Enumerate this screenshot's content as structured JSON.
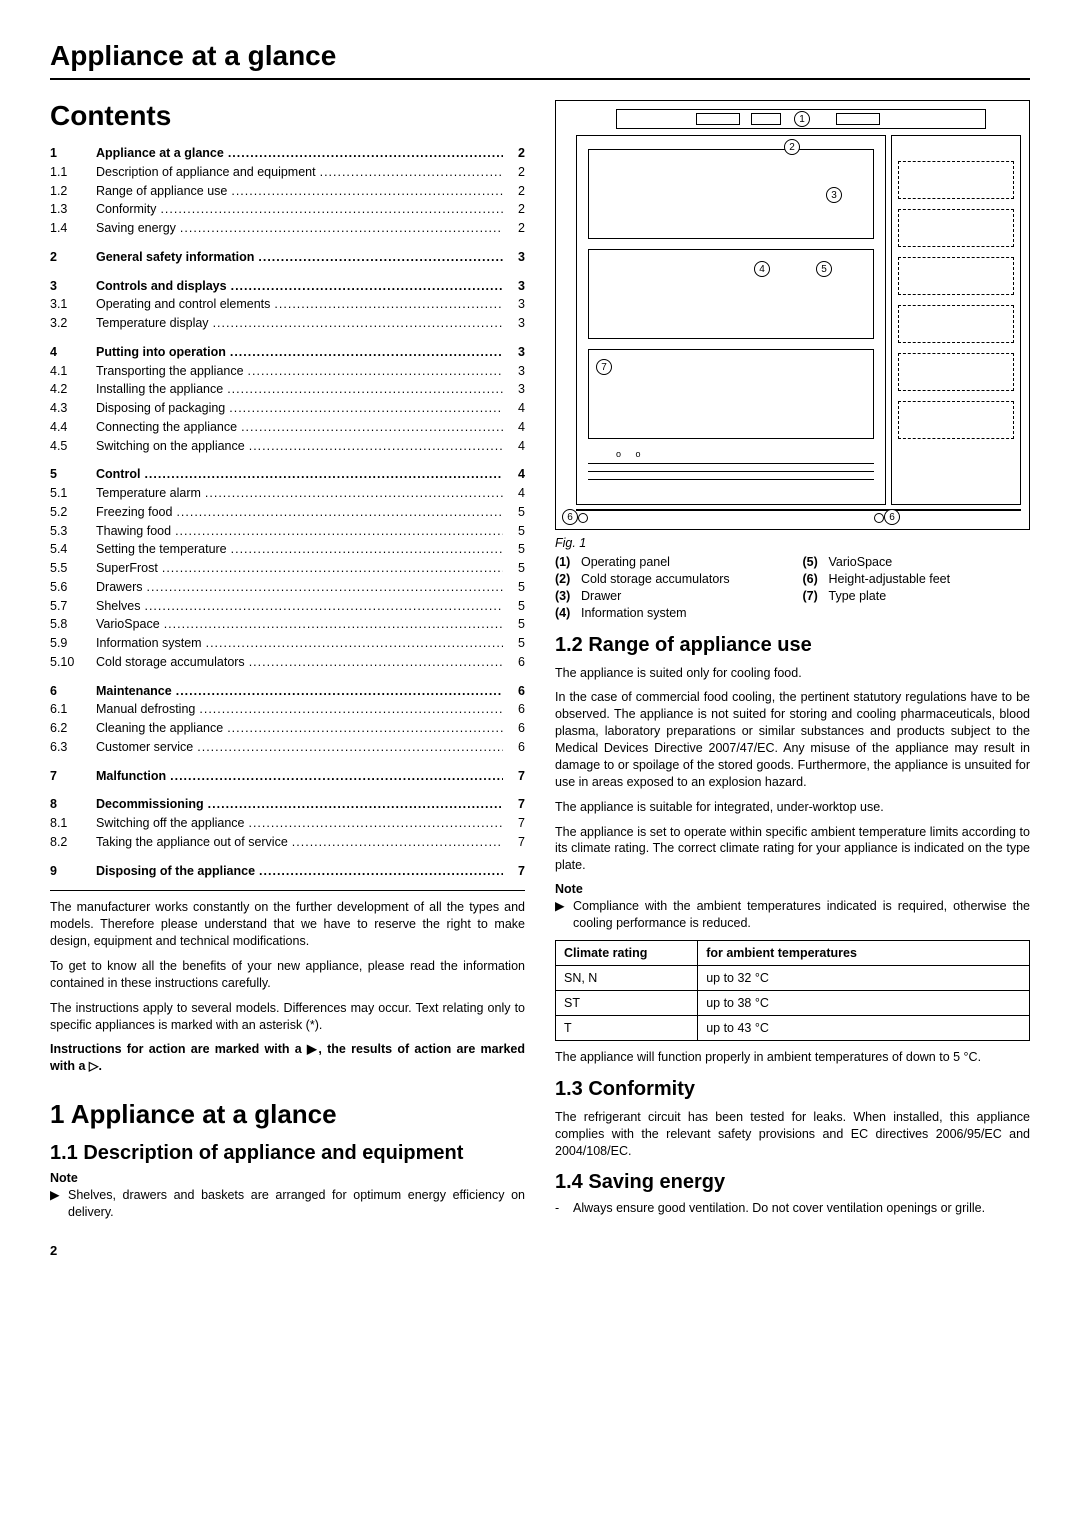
{
  "running_header": "Appliance at a glance",
  "contents_title": "Contents",
  "toc": [
    [
      {
        "n": "1",
        "t": "Appliance at a glance",
        "p": "2",
        "b": true
      },
      {
        "n": "1.1",
        "t": "Description of appliance and equipment",
        "p": "2",
        "b": false
      },
      {
        "n": "1.2",
        "t": "Range of appliance use",
        "p": "2",
        "b": false
      },
      {
        "n": "1.3",
        "t": "Conformity",
        "p": "2",
        "b": false
      },
      {
        "n": "1.4",
        "t": "Saving energy",
        "p": "2",
        "b": false
      }
    ],
    [
      {
        "n": "2",
        "t": "General safety information",
        "p": "3",
        "b": true
      }
    ],
    [
      {
        "n": "3",
        "t": "Controls and displays",
        "p": "3",
        "b": true
      },
      {
        "n": "3.1",
        "t": "Operating and control elements",
        "p": "3",
        "b": false
      },
      {
        "n": "3.2",
        "t": "Temperature display",
        "p": "3",
        "b": false
      }
    ],
    [
      {
        "n": "4",
        "t": "Putting into operation",
        "p": "3",
        "b": true
      },
      {
        "n": "4.1",
        "t": "Transporting the appliance",
        "p": "3",
        "b": false
      },
      {
        "n": "4.2",
        "t": "Installing the appliance",
        "p": "3",
        "b": false
      },
      {
        "n": "4.3",
        "t": "Disposing of packaging",
        "p": "4",
        "b": false
      },
      {
        "n": "4.4",
        "t": "Connecting the appliance",
        "p": "4",
        "b": false
      },
      {
        "n": "4.5",
        "t": "Switching on the appliance",
        "p": "4",
        "b": false
      }
    ],
    [
      {
        "n": "5",
        "t": "Control",
        "p": "4",
        "b": true
      },
      {
        "n": "5.1",
        "t": "Temperature alarm",
        "p": "4",
        "b": false
      },
      {
        "n": "5.2",
        "t": "Freezing food",
        "p": "5",
        "b": false
      },
      {
        "n": "5.3",
        "t": "Thawing food",
        "p": "5",
        "b": false
      },
      {
        "n": "5.4",
        "t": "Setting the temperature",
        "p": "5",
        "b": false
      },
      {
        "n": "5.5",
        "t": "SuperFrost",
        "p": "5",
        "b": false
      },
      {
        "n": "5.6",
        "t": "Drawers",
        "p": "5",
        "b": false
      },
      {
        "n": "5.7",
        "t": "Shelves",
        "p": "5",
        "b": false
      },
      {
        "n": "5.8",
        "t": "VarioSpace",
        "p": "5",
        "b": false
      },
      {
        "n": "5.9",
        "t": "Information system",
        "p": "5",
        "b": false
      },
      {
        "n": "5.10",
        "t": "Cold storage accumulators",
        "p": "6",
        "b": false
      }
    ],
    [
      {
        "n": "6",
        "t": "Maintenance",
        "p": "6",
        "b": true
      },
      {
        "n": "6.1",
        "t": "Manual defrosting",
        "p": "6",
        "b": false
      },
      {
        "n": "6.2",
        "t": "Cleaning the appliance",
        "p": "6",
        "b": false
      },
      {
        "n": "6.3",
        "t": "Customer service",
        "p": "6",
        "b": false
      }
    ],
    [
      {
        "n": "7",
        "t": "Malfunction",
        "p": "7",
        "b": true
      }
    ],
    [
      {
        "n": "8",
        "t": "Decommissioning",
        "p": "7",
        "b": true
      },
      {
        "n": "8.1",
        "t": "Switching off the appliance",
        "p": "7",
        "b": false
      },
      {
        "n": "8.2",
        "t": "Taking the appliance out of service",
        "p": "7",
        "b": false
      }
    ],
    [
      {
        "n": "9",
        "t": "Disposing of the appliance",
        "p": "7",
        "b": true
      }
    ]
  ],
  "para_manufacturer": "The manufacturer works constantly on the further development of all the types and models. Therefore please understand that we have to reserve the right to make design, equipment and technical modifications.",
  "para_benefits": "To get to know all the benefits of your new appliance, please read the information contained in these instructions carefully.",
  "para_models": "The instructions apply to several models. Differences may occur. Text relating only to specific appliances is marked with an asterisk (*).",
  "para_actions": "Instructions for action are marked with a ▶, the results of action are marked with a ▷.",
  "h1_1": "1 Appliance at a glance",
  "h2_11": "1.1 Description of appliance and equipment",
  "note_label": "Note",
  "note_11": "Shelves, drawers and baskets are arranged for optimum energy efficiency on delivery.",
  "fig_caption": "Fig. 1",
  "legend_left": [
    {
      "n": "(1)",
      "t": "Operating panel"
    },
    {
      "n": "(2)",
      "t": "Cold storage accumulators"
    },
    {
      "n": "(3)",
      "t": "Drawer"
    },
    {
      "n": "(4)",
      "t": "Information system"
    }
  ],
  "legend_right": [
    {
      "n": "(5)",
      "t": "VarioSpace"
    },
    {
      "n": "(6)",
      "t": "Height-adjustable feet"
    },
    {
      "n": "(7)",
      "t": "Type plate"
    }
  ],
  "h2_12": "1.2 Range of appliance use",
  "para_12a": "The appliance is suited only for cooling food.",
  "para_12b": "In the case of commercial food cooling, the pertinent statutory regulations have to be observed. The appliance is not suited for storing and cooling pharmaceuticals, blood plasma, laboratory preparations or similar substances and products subject to the Medical Devices Directive 2007/47/EC. Any misuse of the appliance may result in damage to or spoilage of the stored goods. Furthermore, the appliance is unsuited for use in areas exposed to an explosion hazard.",
  "para_12c": "The appliance is suitable for integrated, under-worktop use.",
  "para_12d": "The appliance is set to operate within specific ambient temperature limits according to its climate rating. The correct climate rating for your appliance is indicated on the type plate.",
  "note_12": "Compliance with the ambient temperatures indicated is required, otherwise the cooling performance is reduced.",
  "table": {
    "head_a": "Climate rating",
    "head_b": "for ambient temperatures",
    "rows": [
      {
        "a": "SN, N",
        "b": "up to 32 °C"
      },
      {
        "a": "ST",
        "b": "up to 38 °C"
      },
      {
        "a": "T",
        "b": "up to 43 °C"
      }
    ]
  },
  "para_12e": "The appliance will function properly in ambient temperatures of down to 5 °C.",
  "h2_13": "1.3 Conformity",
  "para_13": "The refrigerant circuit has been tested for leaks. When installed, this appliance complies with the relevant safety provisions and EC directives 2006/95/EC and 2004/108/EC.",
  "h2_14": "1.4 Saving energy",
  "bullet_14": "Always ensure good ventilation. Do not cover ventilation openings or grille.",
  "page_number": "2",
  "fig_labels": {
    "l1": "1",
    "l2": "2",
    "l3": "3",
    "l4": "4",
    "l5": "5",
    "l6a": "6",
    "l6b": "6",
    "l7": "7"
  }
}
